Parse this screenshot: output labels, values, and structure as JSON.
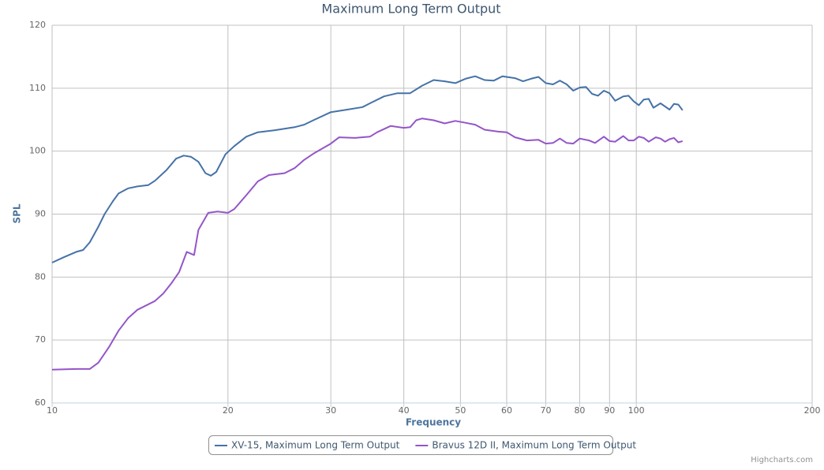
{
  "chart_data": {
    "type": "line",
    "title": "Maximum Long Term Output",
    "x_label": "Frequency",
    "y_label": "SPL",
    "credits": "Highcharts.com",
    "x_log": true,
    "grid": true,
    "xlim": [
      10,
      200
    ],
    "xticks": [
      10,
      20,
      30,
      40,
      50,
      60,
      70,
      80,
      90,
      100,
      200
    ],
    "ylim": [
      60,
      120
    ],
    "yticks": [
      60,
      70,
      80,
      90,
      100,
      110,
      120
    ],
    "legend": "bottom",
    "series": [
      {
        "name": "XV-15, Maximum Long Term Output",
        "color": "#4572a7",
        "x": [
          10,
          10.5,
          11,
          11.3,
          11.6,
          12,
          12.3,
          12.7,
          13,
          13.5,
          14,
          14.6,
          15,
          15.7,
          16.3,
          16.8,
          17.3,
          17.8,
          18.3,
          18.7,
          19.1,
          19.8,
          20.5,
          21.5,
          22.5,
          24,
          26,
          27,
          28,
          30,
          32,
          34,
          35,
          37,
          39,
          41,
          43,
          45,
          47,
          49,
          51,
          53,
          55,
          57,
          59,
          62,
          64,
          66,
          68,
          70,
          72,
          74,
          76,
          78,
          80,
          82,
          84,
          86,
          88,
          90,
          92,
          95,
          97,
          99,
          101,
          103,
          105,
          107,
          110,
          112,
          114,
          116,
          118,
          120
        ],
        "values": [
          82.3,
          83.2,
          84,
          84.3,
          85.5,
          88,
          90,
          92,
          93.3,
          94.1,
          94.4,
          94.6,
          95.3,
          97,
          98.8,
          99.3,
          99.1,
          98.3,
          96.5,
          96.1,
          96.7,
          99.5,
          100.8,
          102.3,
          103,
          103.3,
          103.8,
          104.2,
          104.9,
          106.2,
          106.6,
          107,
          107.6,
          108.7,
          109.2,
          109.2,
          110.4,
          111.3,
          111.1,
          110.8,
          111.5,
          111.9,
          111.3,
          111.2,
          111.9,
          111.6,
          111.1,
          111.5,
          111.8,
          110.8,
          110.6,
          111.2,
          110.6,
          109.6,
          110.1,
          110.2,
          109.1,
          108.8,
          109.6,
          109.2,
          108,
          108.7,
          108.8,
          107.9,
          107.3,
          108.2,
          108.3,
          106.9,
          107.6,
          107.1,
          106.6,
          107.5,
          107.4,
          106.5
        ]
      },
      {
        "name": "Bravus 12D II, Maximum Long Term Output",
        "color": "#9455c8",
        "x": [
          10,
          11,
          11.6,
          12,
          12.5,
          13,
          13.5,
          14,
          15,
          15.5,
          16,
          16.5,
          17,
          17.5,
          17.8,
          18.5,
          19.2,
          20,
          20.5,
          21.5,
          22.5,
          23.5,
          25,
          26,
          27,
          28,
          30,
          31,
          33,
          35,
          36,
          38,
          40,
          41,
          42,
          43,
          45,
          47,
          49,
          51,
          53,
          55,
          58,
          60,
          62,
          65,
          68,
          70,
          72,
          74,
          76,
          78,
          80,
          83,
          85,
          88,
          90,
          92,
          95,
          97,
          99,
          101,
          103,
          105,
          108,
          110,
          112,
          114,
          116,
          118,
          120
        ],
        "values": [
          65.3,
          65.4,
          65.4,
          66.4,
          68.8,
          71.5,
          73.5,
          74.8,
          76.2,
          77.4,
          79,
          80.8,
          84,
          83.5,
          87.5,
          90.2,
          90.4,
          90.2,
          90.8,
          93,
          95.2,
          96.2,
          96.5,
          97.3,
          98.6,
          99.6,
          101.2,
          102.2,
          102.1,
          102.3,
          103,
          104,
          103.7,
          103.8,
          104.9,
          105.2,
          104.9,
          104.4,
          104.8,
          104.5,
          104.2,
          103.4,
          103.1,
          103,
          102.2,
          101.7,
          101.8,
          101.2,
          101.3,
          102,
          101.3,
          101.2,
          102,
          101.7,
          101.3,
          102.3,
          101.6,
          101.5,
          102.4,
          101.7,
          101.7,
          102.3,
          102.1,
          101.5,
          102.2,
          102,
          101.5,
          101.9,
          102.1,
          101.4,
          101.6
        ]
      }
    ]
  }
}
